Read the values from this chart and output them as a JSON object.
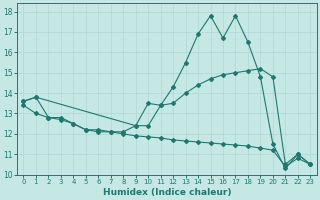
{
  "xlabel": "Humidex (Indice chaleur)",
  "xlim": [
    -0.5,
    23.5
  ],
  "ylim": [
    10,
    18.4
  ],
  "xticks": [
    0,
    1,
    2,
    3,
    4,
    5,
    6,
    7,
    8,
    9,
    10,
    11,
    12,
    13,
    14,
    15,
    16,
    17,
    18,
    19,
    20,
    21,
    22,
    23
  ],
  "yticks": [
    10,
    11,
    12,
    13,
    14,
    15,
    16,
    17,
    18
  ],
  "bg_color": "#c5e8e5",
  "line_color": "#1e7870",
  "grid_color": "#b0d8d4",
  "line1_x": [
    0,
    1,
    2,
    3,
    4,
    5,
    6,
    7,
    8,
    9,
    10,
    11,
    12,
    13,
    14,
    15,
    16,
    17,
    18,
    19,
    20,
    21,
    22,
    23
  ],
  "line1_y": [
    13.6,
    13.8,
    12.8,
    12.8,
    12.5,
    12.2,
    12.2,
    12.1,
    12.1,
    12.4,
    13.5,
    13.4,
    14.3,
    15.5,
    16.9,
    17.8,
    16.7,
    17.8,
    16.5,
    14.8,
    11.5,
    10.3,
    11.0,
    10.5
  ],
  "line1_markers": [
    0,
    1,
    2,
    3,
    4,
    5,
    6,
    7,
    8,
    9,
    10,
    11,
    12,
    13,
    14,
    15,
    16,
    17,
    18,
    19,
    20,
    21,
    22,
    23
  ],
  "line2_x": [
    0,
    1,
    9,
    10,
    11,
    12,
    13,
    14,
    15,
    16,
    17,
    18,
    19,
    20,
    21,
    22,
    23
  ],
  "line2_y": [
    13.6,
    13.8,
    12.4,
    12.4,
    13.4,
    13.5,
    14.0,
    14.4,
    14.7,
    14.9,
    15.0,
    15.1,
    15.2,
    14.8,
    10.5,
    11.0,
    10.5
  ],
  "line2_markers": [
    0,
    1,
    9,
    10,
    11,
    12,
    13,
    14,
    15,
    16,
    17,
    18,
    19,
    20,
    21,
    22,
    23
  ],
  "line3_x": [
    0,
    1,
    2,
    3,
    4,
    5,
    6,
    7,
    8,
    9,
    10,
    11,
    12,
    13,
    14,
    15,
    16,
    17,
    18,
    19,
    20,
    21,
    22,
    23
  ],
  "line3_y": [
    13.4,
    13.0,
    12.8,
    12.7,
    12.5,
    12.2,
    12.1,
    12.1,
    12.0,
    11.9,
    11.85,
    11.8,
    11.7,
    11.65,
    11.6,
    11.55,
    11.5,
    11.45,
    11.4,
    11.3,
    11.2,
    10.4,
    10.8,
    10.5
  ],
  "line3_markers": [
    0,
    1,
    2,
    3,
    4,
    5,
    6,
    7,
    8,
    9,
    19,
    20,
    21,
    22,
    23
  ]
}
